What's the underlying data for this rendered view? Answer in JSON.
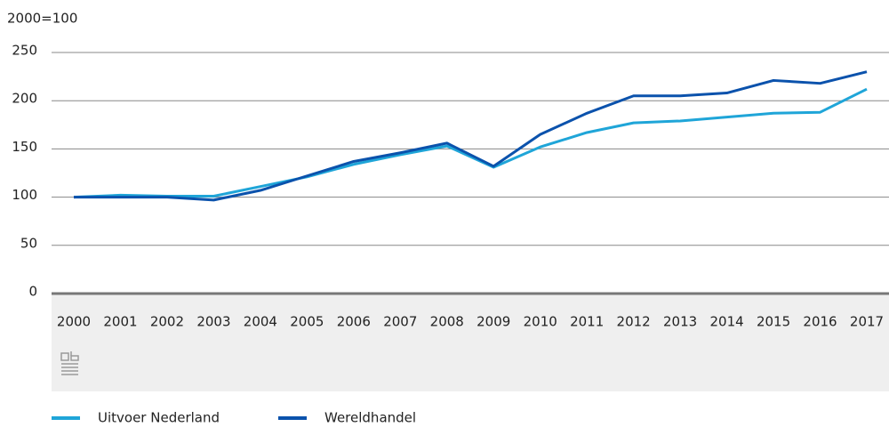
{
  "chart_data": {
    "type": "line",
    "y_label": "2000=100",
    "categories": [
      "2000",
      "2001",
      "2002",
      "2003",
      "2004",
      "2005",
      "2006",
      "2007",
      "2008",
      "2009",
      "2010",
      "2011",
      "2012",
      "2013",
      "2014",
      "2015",
      "2016",
      "2017"
    ],
    "series": [
      {
        "name": "Uitvoer Nederland",
        "color": "#1fa5d8",
        "values": [
          100,
          102,
          101,
          101,
          111,
          121,
          134,
          144,
          153,
          131,
          152,
          167,
          177,
          179,
          183,
          187,
          188,
          212
        ]
      },
      {
        "name": "Wereldhandel",
        "color": "#0b52ac",
        "values": [
          100,
          100,
          100,
          97,
          107,
          122,
          137,
          146,
          156,
          132,
          165,
          187,
          205,
          205,
          208,
          221,
          218,
          230
        ]
      }
    ],
    "ylim": [
      0,
      250
    ],
    "yticks": [
      0,
      50,
      100,
      150,
      200,
      250
    ],
    "grid": true
  }
}
